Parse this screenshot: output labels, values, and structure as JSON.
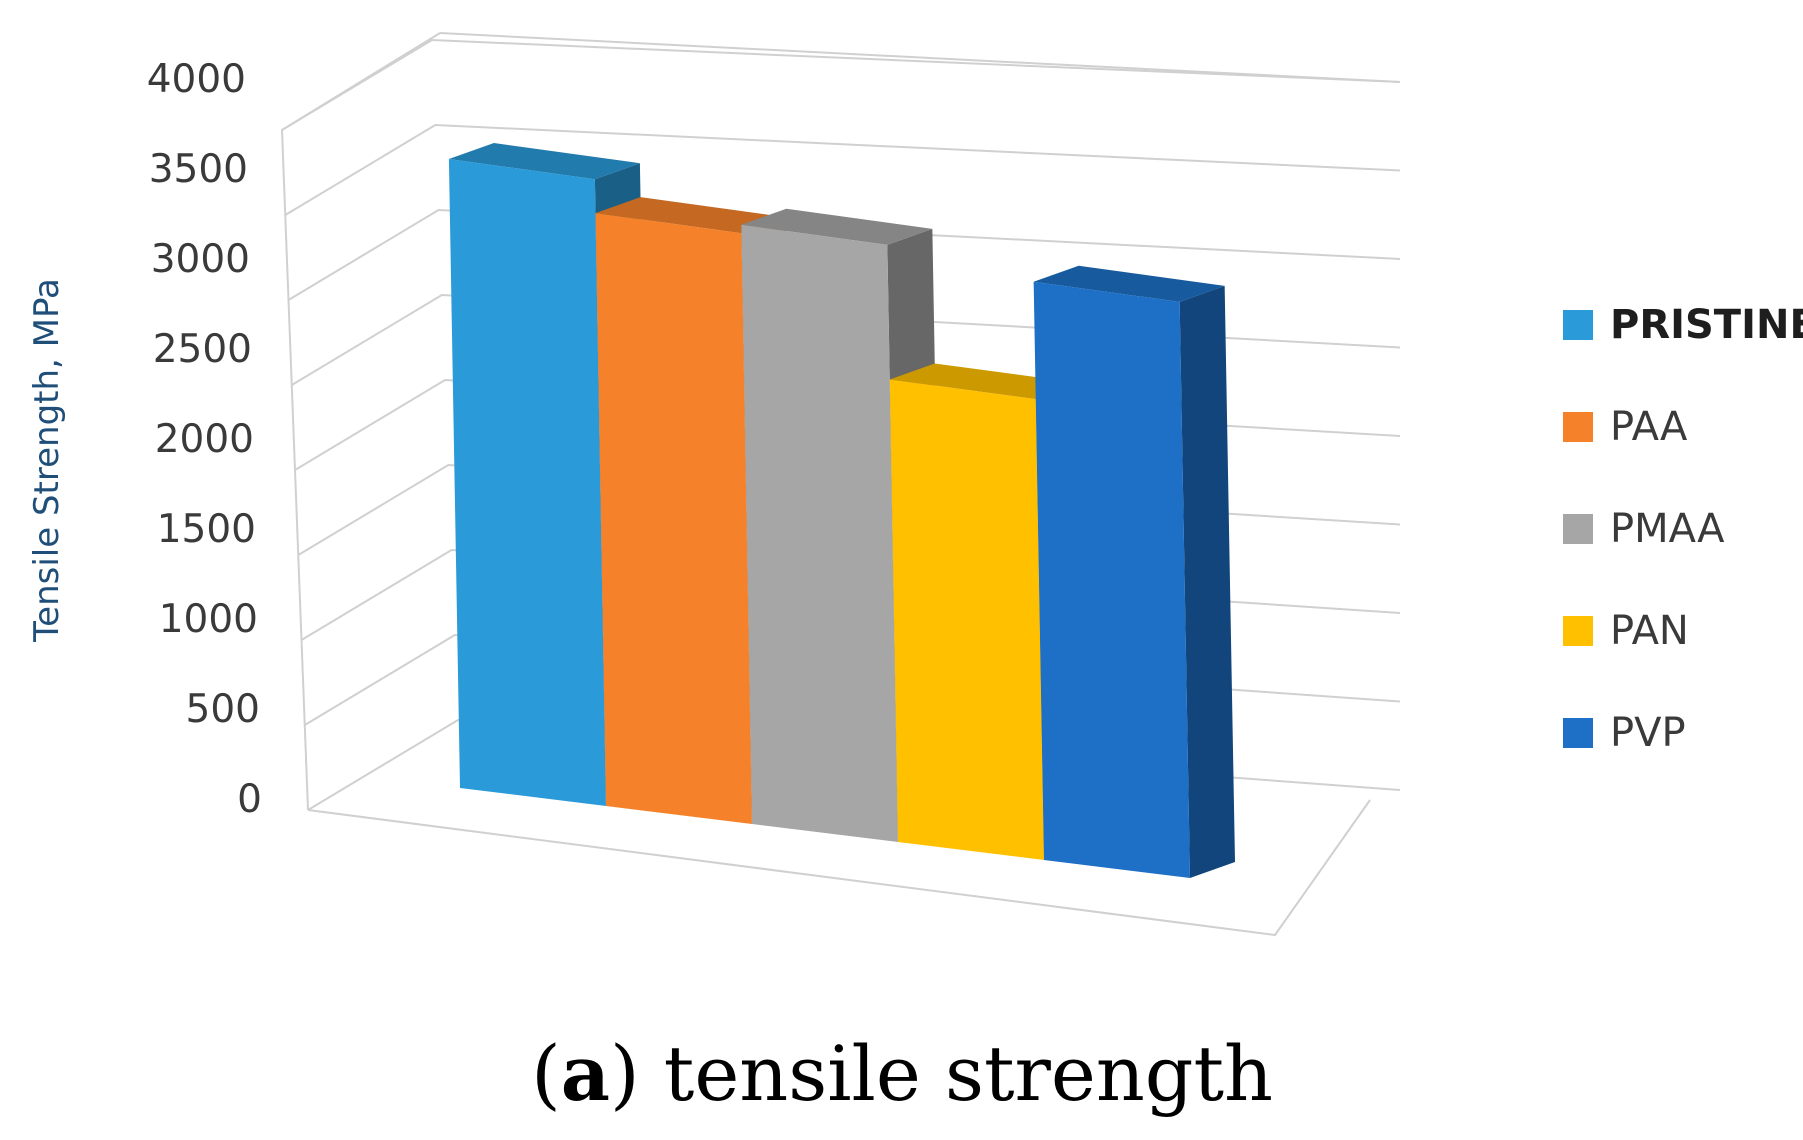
{
  "chart_data": {
    "type": "bar",
    "categories": [
      "PRISTINE",
      "PAA",
      "PMAA",
      "PAN",
      "PVP"
    ],
    "values": [
      3700,
      3500,
      3550,
      2750,
      3450
    ],
    "ylabel": "Tensile Strength, MPa",
    "ylim": [
      0,
      4000
    ],
    "yticks": [
      "0",
      "500",
      "1000",
      "1500",
      "2000",
      "2500",
      "3000",
      "3500",
      "4000"
    ],
    "grid": true,
    "legend_position": "right",
    "series": [
      {
        "name": "PRISTINE",
        "color": "#2a9ad8"
      },
      {
        "name": "PAA",
        "color": "#f5822a"
      },
      {
        "name": "PMAA",
        "color": "#a6a6a6"
      },
      {
        "name": "PAN",
        "color": "#ffc000"
      },
      {
        "name": "PVP",
        "color": "#1d70c6"
      }
    ]
  },
  "caption": {
    "open": "(",
    "letter": "a",
    "rest": ") tensile strength"
  }
}
